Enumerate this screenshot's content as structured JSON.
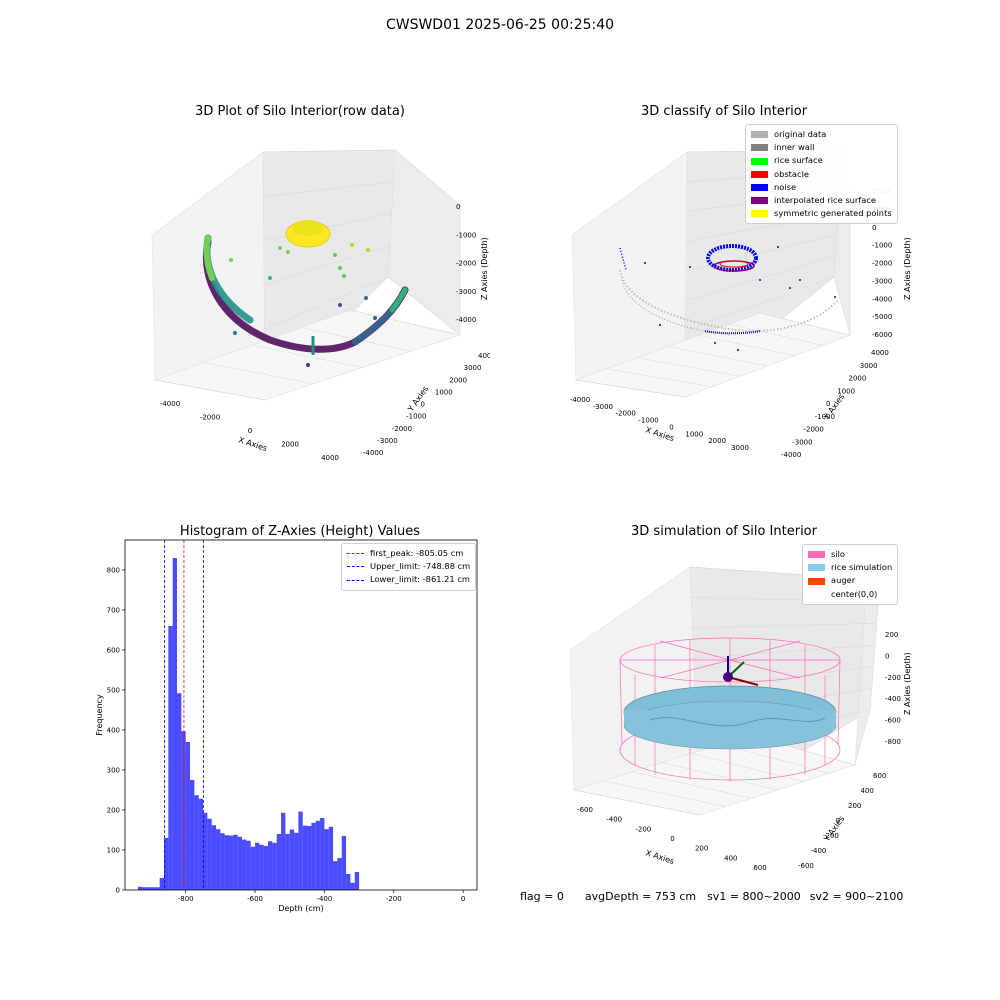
{
  "figure": {
    "suptitle": "CWSWD01 2025-06-25 00:25:40",
    "status": {
      "flag": "flag = 0",
      "avg_depth": "avgDepth = 753 cm",
      "sv1": "sv1 = 800~2000",
      "sv2": "sv2 = 900~2100"
    }
  },
  "chart_data": [
    {
      "type": "scatter",
      "projection": "3d",
      "title": "3D Plot of Silo Interior(row data)",
      "xlabel": "X Axies",
      "ylabel": "Y Axies",
      "zlabel": "Z Axies (Depth)",
      "x_ticks": [
        "-4000",
        "-2000",
        "0",
        "2000",
        "4000"
      ],
      "y_ticks": [
        "-4000",
        "-3000",
        "-2000",
        "-1000",
        "0",
        "1000",
        "2000",
        "3000",
        "4000"
      ],
      "z_ticks": [
        "-4000",
        "-3000",
        "-2000",
        "-1000",
        "0"
      ],
      "xlim": [
        -4500,
        4500
      ],
      "ylim": [
        -4500,
        4500
      ],
      "zlim": [
        -4500,
        300
      ],
      "colormap": "viridis",
      "grid": true
    },
    {
      "type": "scatter",
      "projection": "3d",
      "title": "3D classify of Silo Interior",
      "xlabel": "X Axies",
      "ylabel": "Y Axies",
      "zlabel": "Z Axies (Depth)",
      "x_ticks": [
        "-4000",
        "-3000",
        "-2000",
        "-1000",
        "0",
        "1000",
        "2000",
        "3000"
      ],
      "y_ticks": [
        "-4000",
        "-3000",
        "-2000",
        "-1000",
        "0",
        "1000",
        "2000",
        "3000",
        "4000"
      ],
      "z_ticks": [
        "-6000",
        "-5000",
        "-4000",
        "-3000",
        "-2000",
        "-1000",
        "0",
        "1000",
        "2000"
      ],
      "legend_position": "top-right",
      "legend": [
        {
          "label": "original data",
          "color": "#b0b0b0"
        },
        {
          "label": "inner wall",
          "color": "#808080"
        },
        {
          "label": "rice surface",
          "color": "#00ff00"
        },
        {
          "label": "obstacle",
          "color": "#ff0000"
        },
        {
          "label": "noise",
          "color": "#0000ff"
        },
        {
          "label": "interpolated rice surface",
          "color": "#800080"
        },
        {
          "label": "symmetric generated points",
          "color": "#ffff00"
        }
      ],
      "grid": true
    },
    {
      "type": "bar",
      "subtype": "histogram",
      "title": "Histogram of Z-Axies (Height) Values",
      "xlabel": "Depth (cm)",
      "ylabel": "Frequency",
      "xlim": [
        -975,
        40
      ],
      "ylim": [
        0,
        875
      ],
      "x_ticks": [
        -800,
        -600,
        -400,
        -200,
        0
      ],
      "y_ticks": [
        0,
        100,
        200,
        300,
        400,
        500,
        600,
        700,
        800
      ],
      "bin_width": 12.5,
      "bin_start": -937.5,
      "values": [
        8,
        7,
        7,
        7,
        7,
        30,
        130,
        660,
        830,
        492,
        397,
        370,
        275,
        237,
        228,
        193,
        178,
        162,
        152,
        142,
        137,
        136,
        138,
        133,
        126,
        123,
        108,
        118,
        113,
        110,
        122,
        118,
        140,
        193,
        140,
        151,
        143,
        196,
        161,
        160,
        168,
        173,
        180,
        152,
        158,
        72,
        80,
        135,
        40,
        18,
        45
      ],
      "bar_color": "#0000ff",
      "vlines": [
        {
          "label": "first_peak: -805.05 cm",
          "x": -805.05,
          "color": "#ff0000"
        },
        {
          "label": "Upper_limit: -748.88 cm",
          "x": -748.88,
          "color": "#0000ff"
        },
        {
          "label": "Lower_limit: -861.21 cm",
          "x": -861.21,
          "color": "#0000ff"
        }
      ],
      "legend_position": "top-right",
      "grid": false
    },
    {
      "type": "scatter",
      "projection": "3d",
      "title": "3D simulation of Silo Interior",
      "xlabel": "X Axies",
      "ylabel": "Y Axies",
      "zlabel": "Z Axies (Depth)",
      "x_ticks": [
        "-600",
        "-400",
        "-200",
        "0",
        "200",
        "400",
        "600"
      ],
      "y_ticks": [
        "-600",
        "-400",
        "-200",
        "0",
        "200",
        "400",
        "600"
      ],
      "z_ticks": [
        "-800",
        "-600",
        "-400",
        "-200",
        "0",
        "200"
      ],
      "legend_position": "top-right",
      "legend": [
        {
          "label": "silo",
          "color": "#ff69b4"
        },
        {
          "label": "rice simulation",
          "color": "#87ceeb"
        },
        {
          "label": "auger",
          "color": "#ff4500"
        },
        {
          "label": "center(0,0)",
          "color": ""
        }
      ],
      "grid": true
    }
  ]
}
